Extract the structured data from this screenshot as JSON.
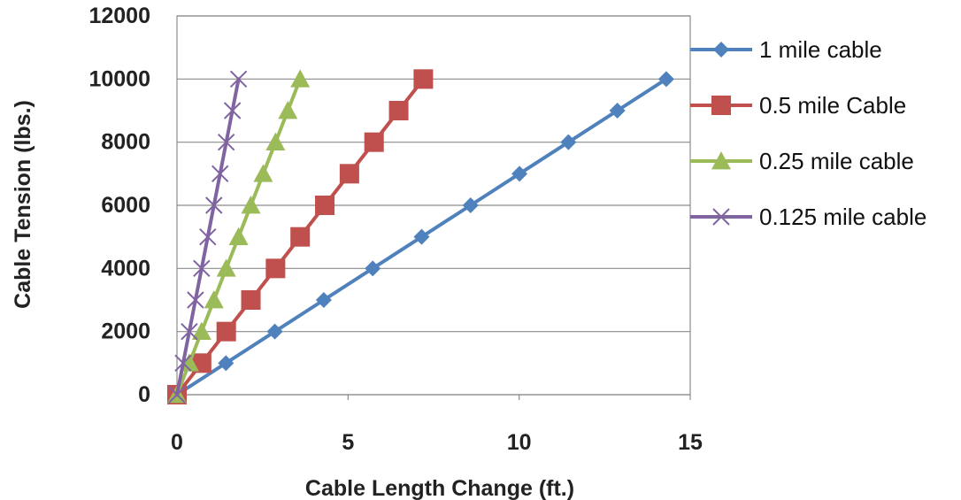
{
  "chart_data": {
    "type": "line",
    "title": "",
    "xlabel": "Cable Length Change (ft.)",
    "ylabel": "Cable Tension (lbs.)",
    "xlim": [
      0,
      15
    ],
    "ylim": [
      0,
      12000
    ],
    "xticks": [
      "0",
      "5",
      "10",
      "15"
    ],
    "yticks": [
      "0",
      "2000",
      "4000",
      "6000",
      "8000",
      "10000",
      "12000"
    ],
    "grid": "horizontal",
    "legend_position": "right",
    "series": [
      {
        "name": "1 mile cable",
        "color": "#4F81BD",
        "marker": "diamond",
        "x": [
          0,
          1.43,
          2.86,
          4.29,
          5.72,
          7.15,
          8.58,
          10.01,
          11.44,
          12.87,
          14.3
        ],
        "y": [
          0,
          1000,
          2000,
          3000,
          4000,
          5000,
          6000,
          7000,
          8000,
          9000,
          10000
        ]
      },
      {
        "name": "0.5 mile Cable",
        "color": "#C0504D",
        "marker": "square",
        "x": [
          0,
          0.72,
          1.44,
          2.16,
          2.88,
          3.6,
          4.32,
          5.04,
          5.76,
          6.48,
          7.2
        ],
        "y": [
          0,
          1000,
          2000,
          3000,
          4000,
          5000,
          6000,
          7000,
          8000,
          9000,
          10000
        ]
      },
      {
        "name": "0.25 mile cable",
        "color": "#9BBB59",
        "marker": "triangle",
        "x": [
          0,
          0.36,
          0.72,
          1.08,
          1.44,
          1.8,
          2.16,
          2.52,
          2.88,
          3.24,
          3.6
        ],
        "y": [
          0,
          1000,
          2000,
          3000,
          4000,
          5000,
          6000,
          7000,
          8000,
          9000,
          10000
        ]
      },
      {
        "name": "0.125 mile cable",
        "color": "#8064A2",
        "marker": "x",
        "x": [
          0,
          0.18,
          0.36,
          0.54,
          0.72,
          0.9,
          1.08,
          1.26,
          1.44,
          1.62,
          1.8
        ],
        "y": [
          0,
          1000,
          2000,
          3000,
          4000,
          5000,
          6000,
          7000,
          8000,
          9000,
          10000
        ]
      }
    ]
  }
}
